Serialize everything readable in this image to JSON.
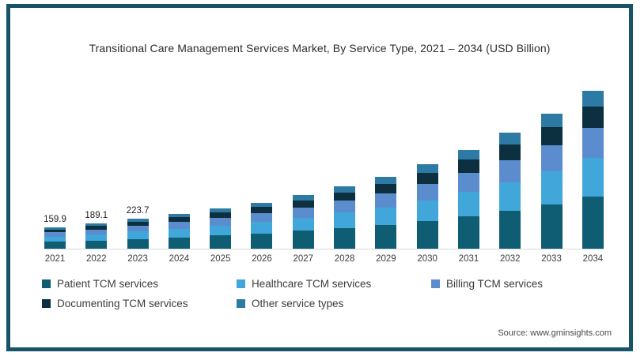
{
  "title": "Transitional Care Management Services Market, By Service Type, 2021 – 2034 (USD Billion)",
  "source_note": "Source: www.gminsights.com",
  "frame": {
    "border_color": "#175468",
    "axis_line_color": "#d9d9d9"
  },
  "legend": {
    "position": "bottom",
    "items": [
      {
        "label": "Patient TCM services",
        "color": "#0e5d73"
      },
      {
        "label": "Healthcare TCM services",
        "color": "#41a7db"
      },
      {
        "label": "Billing TCM services",
        "color": "#5b8dce"
      },
      {
        "label": "Documenting TCM services",
        "color": "#0d3040"
      },
      {
        "label": "Other service types",
        "color": "#2d7aa4"
      }
    ]
  },
  "chart_data": {
    "type": "bar",
    "stacked": true,
    "title": "Transitional Care Management Services Market, By Service Type, 2021 – 2034 (USD Billion)",
    "xlabel": "",
    "ylabel": "",
    "unit": "USD Billion",
    "grid": false,
    "legend_position": "bottom",
    "ylim": [
      0,
      1250
    ],
    "categories": [
      2021,
      2022,
      2023,
      2024,
      2025,
      2026,
      2027,
      2028,
      2029,
      2030,
      2031,
      2032,
      2033,
      2034
    ],
    "series": [
      {
        "name": "Patient TCM services",
        "color": "#0e5d73",
        "values": [
          52.8,
          62.4,
          73.8,
          86.5,
          99.7,
          114.8,
          134.3,
          156.1,
          178.9,
          209.9,
          245.9,
          288.4,
          335.6,
          392.0
        ]
      },
      {
        "name": "Healthcare TCM services",
        "color": "#41a7db",
        "values": [
          39.2,
          46.3,
          54.8,
          64.2,
          74.0,
          85.3,
          99.7,
          115.9,
          132.8,
          155.8,
          182.5,
          214.1,
          249.2,
          291.1
        ]
      },
      {
        "name": "Billing TCM services",
        "color": "#5b8dce",
        "values": [
          30.4,
          35.9,
          42.5,
          49.8,
          57.4,
          66.1,
          77.3,
          89.9,
          103.0,
          120.8,
          141.6,
          166.1,
          193.2,
          225.7
        ]
      },
      {
        "name": "Documenting TCM services",
        "color": "#0d3040",
        "values": [
          21.6,
          25.5,
          30.2,
          35.4,
          40.8,
          47.0,
          54.9,
          63.9,
          73.2,
          85.9,
          100.6,
          118.0,
          137.3,
          160.4
        ]
      },
      {
        "name": "Other service types",
        "color": "#2d7aa4",
        "values": [
          16.0,
          18.9,
          22.4,
          26.2,
          30.2,
          34.8,
          40.7,
          47.3,
          54.2,
          63.6,
          74.5,
          87.4,
          101.7,
          118.8
        ]
      }
    ],
    "totals": [
      159.9,
      189.1,
      223.7,
      262,
      302,
      348,
      407,
      473,
      542,
      636,
      745,
      874,
      1017,
      1188
    ],
    "data_labels": [
      "159.9",
      "189.1",
      "223.7",
      "",
      "",
      "",
      "",
      "",
      "",
      "",
      "",
      "",
      "",
      ""
    ]
  }
}
